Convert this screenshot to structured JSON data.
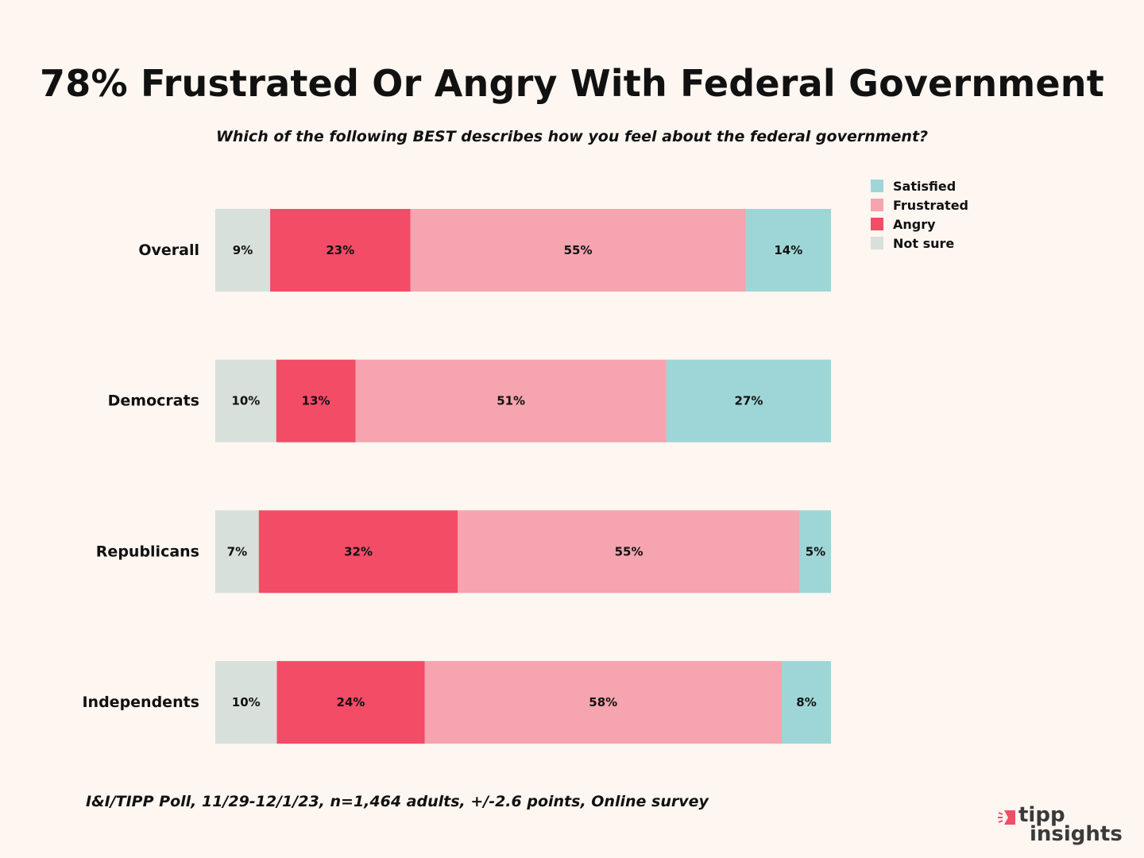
{
  "colors": {
    "background": "#fdf6f1",
    "Satisfied": "#9ed6d7",
    "Frustrated": "#f6a4af",
    "Angry": "#f24c67",
    "Not sure": "#d8e0db"
  },
  "footnote": "I&I/TIPP Poll, 11/29-12/1/23, n=1,464 adults, +/-2.6 points, Online survey",
  "logo": {
    "line1": "tipp",
    "line2": "insights"
  },
  "chart_data": {
    "type": "bar",
    "orientation": "horizontal",
    "stacked": true,
    "title": "78% Frustrated Or Angry With Federal Government",
    "subtitle": "Which of the following BEST describes how you feel about the federal government?",
    "categories": [
      "Overall",
      "Democrats",
      "Republicans",
      "Independents"
    ],
    "series": [
      {
        "name": "Not sure",
        "values": [
          9,
          10,
          7,
          10
        ],
        "labels": [
          "9%",
          "10%",
          "7%",
          "10%"
        ]
      },
      {
        "name": "Angry",
        "values": [
          23,
          13,
          32,
          24
        ],
        "labels": [
          "23%",
          "13%",
          "32%",
          "24%"
        ]
      },
      {
        "name": "Frustrated",
        "values": [
          55,
          51,
          55,
          58
        ],
        "labels": [
          "55%",
          "51%",
          "55%",
          "58%"
        ]
      },
      {
        "name": "Satisfied",
        "values": [
          14,
          27,
          5,
          8
        ],
        "labels": [
          "14%",
          "27%",
          "5%",
          "8%"
        ]
      }
    ],
    "legend": {
      "position": "top-right",
      "items": [
        "Satisfied",
        "Frustrated",
        "Angry",
        "Not sure"
      ]
    },
    "xlabel": "",
    "ylabel": "",
    "grid": false
  }
}
